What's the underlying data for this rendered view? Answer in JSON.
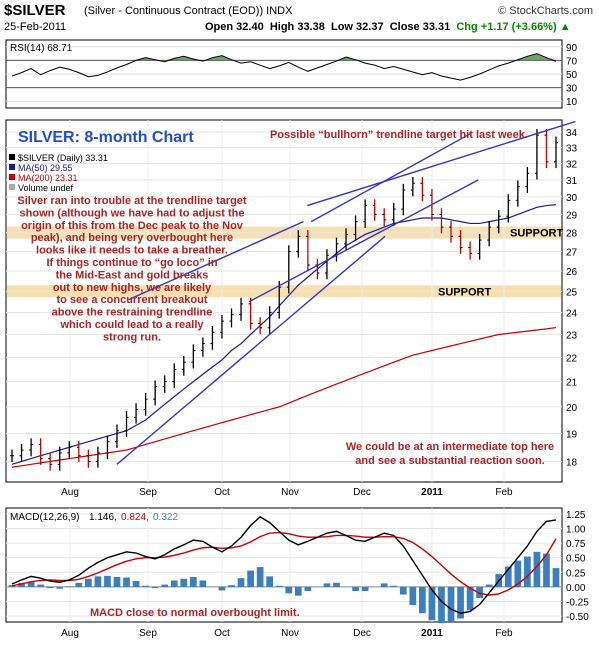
{
  "header": {
    "symbol": "$SILVER",
    "description": "(Silver - Continuous Contract (EOD)) INDX",
    "watermark": "© StockCharts.com",
    "date": "25-Feb-2011",
    "open": "Open 32.40",
    "high": "High 33.38",
    "low": "Low 32.37",
    "close": "Close 33.31",
    "change": "Chg +1.17 (+3.66%)",
    "change_arrow": "▲"
  },
  "colors": {
    "price_bar": "#000000",
    "price_bar_up_hl": "#cc0000",
    "ma50": "#1a1a99",
    "ma200": "#cc0000",
    "trendline": "#3333cc",
    "support_band": "#f7dfb0",
    "annotation_red": "#b22222",
    "title_blue": "#1f4fcc",
    "rsi_fill": "#4a8a4a",
    "macd_line": "#000000",
    "macd_signal": "#cc0000",
    "macd_hist": "#3a7fc0"
  },
  "chart_data": [
    {
      "type": "line",
      "title": "RSI(14) 68.71",
      "yticks": [
        10,
        30,
        50,
        70,
        90
      ],
      "ylim": [
        0,
        100
      ],
      "reference_levels": [
        30,
        70
      ],
      "series": [
        {
          "name": "RSI(14)",
          "values": [
            47,
            52,
            58,
            49,
            55,
            60,
            57,
            52,
            46,
            48,
            53,
            59,
            64,
            70,
            74,
            71,
            68,
            73,
            76,
            72,
            69,
            74,
            77,
            71,
            66,
            68,
            63,
            58,
            62,
            67,
            60,
            54,
            59,
            64,
            69,
            75,
            71,
            66,
            63,
            58,
            61,
            57,
            53,
            49,
            52,
            47,
            44,
            41,
            45,
            50,
            56,
            62,
            66,
            71,
            76,
            80,
            74,
            68.71
          ]
        }
      ]
    },
    {
      "type": "line",
      "title": "SILVER: 8-month Chart",
      "legend": [
        "$SILVER (Daily) 33.31",
        "MA(50) 29.55",
        "MA(200) 23.31",
        "Volume undef"
      ],
      "yticks": [
        18,
        19,
        20,
        21,
        22,
        23,
        24,
        25,
        26,
        27,
        28,
        29,
        30,
        31,
        32,
        33,
        34
      ],
      "xticks": [
        "Aug",
        "Sep",
        "Oct",
        "Nov",
        "Dec",
        "2011",
        "Feb"
      ],
      "ylim": [
        17.3,
        34.8
      ],
      "log_scale": true,
      "series": [
        {
          "name": "$SILVER",
          "values": [
            18.2,
            18.4,
            18.6,
            18.1,
            17.9,
            18.3,
            18.5,
            18.2,
            18.0,
            18.3,
            18.7,
            19.1,
            19.6,
            19.9,
            20.3,
            20.8,
            21.0,
            21.5,
            21.8,
            22.3,
            22.6,
            23.1,
            23.6,
            23.9,
            24.4,
            23.5,
            23.3,
            24.0,
            25.2,
            27.0,
            27.8,
            26.3,
            25.9,
            26.8,
            27.4,
            27.9,
            28.6,
            29.5,
            29.0,
            28.7,
            29.3,
            30.4,
            30.8,
            30.1,
            29.0,
            28.3,
            27.8,
            27.2,
            26.9,
            27.6,
            28.3,
            28.9,
            29.8,
            30.6,
            31.4,
            33.8,
            32.1,
            33.31
          ]
        },
        {
          "name": "MA(50)",
          "values": [
            17.9,
            18.0,
            18.1,
            18.2,
            18.3,
            18.4,
            18.5,
            18.6,
            18.7,
            18.8,
            18.9,
            19.0,
            19.1,
            19.3,
            19.5,
            19.8,
            20.1,
            20.4,
            20.7,
            21.0,
            21.3,
            21.6,
            21.9,
            22.3,
            22.6,
            23.0,
            23.4,
            23.8,
            24.3,
            24.8,
            25.3,
            25.7,
            26.1,
            26.5,
            26.9,
            27.3,
            27.6,
            27.9,
            28.1,
            28.3,
            28.5,
            28.6,
            28.7,
            28.8,
            28.8,
            28.8,
            28.7,
            28.6,
            28.5,
            28.5,
            28.6,
            28.7,
            28.8,
            29.0,
            29.2,
            29.4,
            29.5,
            29.55
          ]
        },
        {
          "name": "MA(200)",
          "values": [
            17.8,
            17.85,
            17.9,
            17.95,
            18.0,
            18.05,
            18.1,
            18.15,
            18.2,
            18.25,
            18.3,
            18.35,
            18.4,
            18.5,
            18.6,
            18.7,
            18.8,
            18.9,
            19.0,
            19.1,
            19.2,
            19.3,
            19.4,
            19.5,
            19.6,
            19.7,
            19.8,
            19.9,
            20.0,
            20.15,
            20.3,
            20.45,
            20.6,
            20.75,
            20.9,
            21.05,
            21.2,
            21.35,
            21.5,
            21.65,
            21.8,
            21.95,
            22.1,
            22.2,
            22.3,
            22.4,
            22.5,
            22.6,
            22.7,
            22.8,
            22.9,
            23.0,
            23.05,
            23.1,
            23.15,
            23.2,
            23.25,
            23.31
          ]
        }
      ],
      "trendlines": [
        {
          "x1": 27,
          "y1": 17.9,
          "x2": 96,
          "y2": 27.8
        },
        {
          "x1": 30,
          "y1": 24.6,
          "x2": 75,
          "y2": 28.6
        },
        {
          "x1": 77,
          "y1": 28.6,
          "x2": 118,
          "y2": 33.9
        },
        {
          "x1": 61,
          "y1": 24.5,
          "x2": 120,
          "y2": 31.0
        },
        {
          "x1": 76,
          "y1": 29.5,
          "x2": 145,
          "y2": 34.7
        }
      ],
      "support_levels": [
        {
          "level": 28,
          "label": "SUPPORT"
        },
        {
          "level": 25,
          "label": "SUPPORT"
        }
      ],
      "annotations": [
        "Possible “bullhorn” trendline target hit last week.",
        "Silver ran into trouble at the trendline target",
        "shown (although we have had to adjust the",
        "origin of this from the Dec peak to the Nov",
        "peak), and being very overbought here",
        "looks like it needs to take a breather.",
        "If things continue to “go loco” in",
        "the Mid-East and gold breaks",
        "out to new highs, we are likely",
        "to see a concurrent breakout",
        "above the restraining trendline",
        "which could lead to a really",
        "strong run.",
        "We could be at an intermediate top here",
        "and see a substantial reaction soon."
      ]
    },
    {
      "type": "line",
      "title": "MACD(12,26,9) 1.146, 0.824, 0.322",
      "title_parts": [
        "MACD(12,26,9)",
        "1.146,",
        "0.824,",
        "0.322"
      ],
      "yticks": [
        1.25,
        1.0,
        0.75,
        0.5,
        0.25,
        0.0,
        -0.25,
        -0.5
      ],
      "ylim": [
        -0.6,
        1.35
      ],
      "xticks": [
        "Aug",
        "Sep",
        "Oct",
        "Nov",
        "Dec",
        "2011",
        "Feb"
      ],
      "annotation": "MACD close to normal overbought limit.",
      "series": [
        {
          "name": "MACD",
          "values": [
            0.05,
            0.12,
            0.18,
            0.15,
            0.1,
            0.08,
            0.12,
            0.2,
            0.32,
            0.42,
            0.5,
            0.55,
            0.6,
            0.58,
            0.52,
            0.48,
            0.55,
            0.65,
            0.72,
            0.8,
            0.78,
            0.68,
            0.6,
            0.7,
            0.85,
            1.05,
            1.2,
            1.1,
            0.95,
            0.8,
            0.72,
            0.78,
            0.85,
            0.92,
            0.95,
            0.88,
            0.8,
            0.78,
            0.85,
            0.92,
            0.88,
            0.7,
            0.45,
            0.2,
            -0.05,
            -0.25,
            -0.38,
            -0.45,
            -0.42,
            -0.3,
            -0.1,
            0.1,
            0.3,
            0.5,
            0.7,
            0.95,
            1.12,
            1.146
          ]
        },
        {
          "name": "Signal",
          "values": [
            0.02,
            0.05,
            0.09,
            0.11,
            0.12,
            0.11,
            0.11,
            0.13,
            0.18,
            0.24,
            0.31,
            0.38,
            0.44,
            0.48,
            0.5,
            0.5,
            0.51,
            0.54,
            0.58,
            0.63,
            0.67,
            0.68,
            0.66,
            0.67,
            0.7,
            0.77,
            0.86,
            0.92,
            0.93,
            0.91,
            0.87,
            0.85,
            0.85,
            0.86,
            0.88,
            0.88,
            0.87,
            0.85,
            0.85,
            0.86,
            0.86,
            0.83,
            0.76,
            0.65,
            0.52,
            0.37,
            0.22,
            0.09,
            -0.02,
            -0.11,
            -0.14,
            -0.12,
            -0.05,
            0.05,
            0.18,
            0.35,
            0.55,
            0.824
          ]
        }
      ]
    }
  ]
}
